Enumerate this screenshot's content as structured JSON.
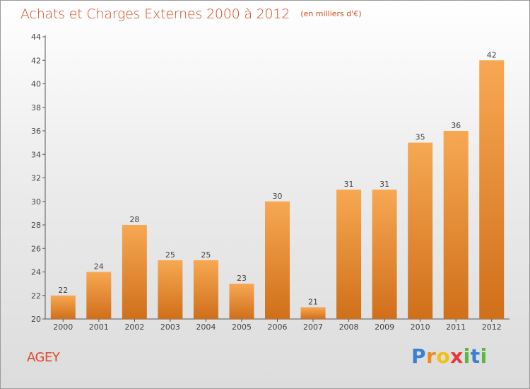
{
  "header": {
    "title": "Achats et Charges Externes 2000 à 2012",
    "unit": "(en milliers d'€)"
  },
  "chart_data": {
    "type": "bar",
    "title": "Achats et Charges Externes 2000 à 2012",
    "subtitle": "(en milliers d'€)",
    "xlabel": "",
    "ylabel": "",
    "categories": [
      "2000",
      "2001",
      "2002",
      "2003",
      "2004",
      "2005",
      "2006",
      "2007",
      "2008",
      "2009",
      "2010",
      "2011",
      "2012"
    ],
    "values": [
      22,
      24,
      28,
      25,
      25,
      23,
      30,
      21,
      31,
      31,
      35,
      36,
      42
    ],
    "ylim": [
      20,
      44
    ],
    "yticks": [
      20,
      22,
      24,
      26,
      28,
      30,
      32,
      34,
      36,
      38,
      40,
      42,
      44
    ],
    "grid": false,
    "legend": "none",
    "colors": {
      "bar_light": "#f7a853",
      "bar_dark": "#d06f1a",
      "axis": "#555555"
    }
  },
  "footer": {
    "commune": "AGEY",
    "logo_letters": [
      "P",
      "r",
      "o",
      "x",
      "i",
      "t",
      "i"
    ],
    "logo_colors": [
      "#3a7fd0",
      "#f08a1c",
      "#f2c10f",
      "#e8363c",
      "#5bb83a",
      "#3a7fd0",
      "#5bb83a"
    ]
  }
}
